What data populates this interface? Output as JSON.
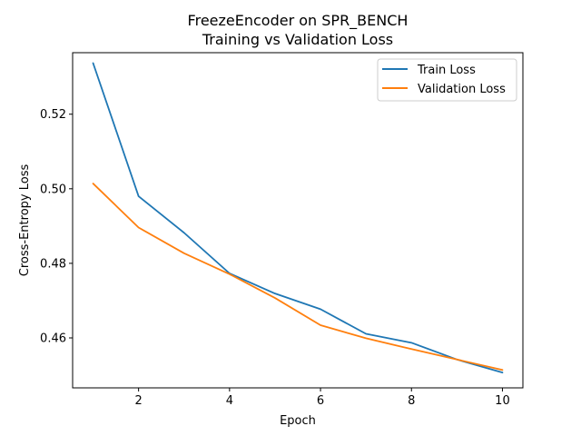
{
  "chart_data": {
    "type": "line",
    "title": "FreezeEncoder on SPR_BENCH",
    "subtitle": "Training vs Validation Loss",
    "xlabel": "Epoch",
    "ylabel": "Cross-Entropy Loss",
    "x": [
      1,
      2,
      3,
      4,
      5,
      6,
      7,
      8,
      9,
      10
    ],
    "xlim": [
      0.55,
      10.45
    ],
    "ylim": [
      0.4466,
      0.5365
    ],
    "xticks": [
      2,
      4,
      6,
      8,
      10
    ],
    "yticks": [
      0.46,
      0.48,
      0.5,
      0.52
    ],
    "ytick_labels": [
      "0.46",
      "0.48",
      "0.50",
      "0.52"
    ],
    "grid": false,
    "legend_position": "top-right",
    "series": [
      {
        "name": "Train Loss",
        "color": "#1f77b4",
        "values": [
          0.5337,
          0.498,
          0.4882,
          0.4773,
          0.4719,
          0.4677,
          0.4611,
          0.4587,
          0.4542,
          0.4507
        ]
      },
      {
        "name": "Validation Loss",
        "color": "#ff7f0e",
        "values": [
          0.5014,
          0.4896,
          0.4827,
          0.4771,
          0.4707,
          0.4634,
          0.4599,
          0.457,
          0.4542,
          0.4514
        ]
      }
    ]
  }
}
